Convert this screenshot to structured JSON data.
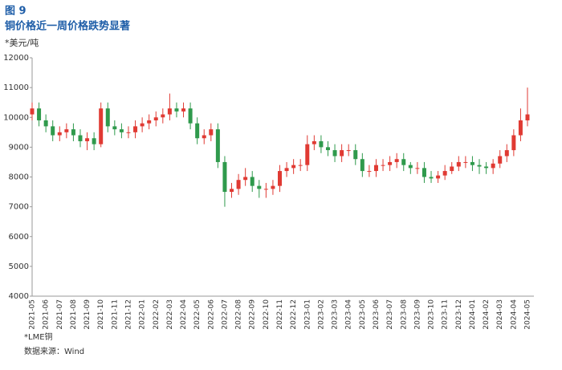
{
  "chart_data": {
    "type": "candlestick",
    "figure_label": "图 9",
    "title": "铜价格近一周价格跌势显著",
    "ylabel": "*美元/吨",
    "note": "*LME铜",
    "source": "数据来源：Wind",
    "up_color": "#e03a33",
    "down_color": "#2f9a4c",
    "categories": [
      "2021-05",
      null,
      "2021-06",
      null,
      "2021-07",
      null,
      "2021-08",
      null,
      "2021-09",
      null,
      "2021-10",
      null,
      "2021-11",
      null,
      "2021-12",
      null,
      "2022-01",
      null,
      "2022-02",
      null,
      "2022-03",
      null,
      "2022-04",
      null,
      "2022-05",
      null,
      "2022-06",
      null,
      "2022-07",
      null,
      "2022-08",
      null,
      "2022-09",
      null,
      "2022-10",
      null,
      "2022-11",
      null,
      "2022-12",
      null,
      "2023-01",
      null,
      "2023-02",
      null,
      "2023-03",
      null,
      "2023-04",
      null,
      "2023-05",
      null,
      "2023-06",
      null,
      "2023-07",
      null,
      "2023-08",
      null,
      "2023-09",
      null,
      "2023-10",
      null,
      "2023-11",
      null,
      "2023-12",
      null,
      "2024-01",
      null,
      "2024-02",
      null,
      "2024-03",
      null,
      "2024-04",
      null,
      "2024-05"
    ],
    "open": [
      10100,
      10300,
      9900,
      9700,
      9400,
      9500,
      9600,
      9400,
      9200,
      9300,
      9100,
      10300,
      9700,
      9600,
      9500,
      9500,
      9700,
      9800,
      9900,
      10000,
      10100,
      10300,
      10200,
      10300,
      9800,
      9300,
      9400,
      9600,
      8500,
      7500,
      7600,
      7900,
      8000,
      7700,
      7600,
      7600,
      7700,
      8200,
      8300,
      8400,
      8400,
      9100,
      9200,
      9000,
      8900,
      8700,
      8900,
      8900,
      8600,
      8200,
      8200,
      8400,
      8400,
      8500,
      8600,
      8400,
      8300,
      8300,
      8000,
      7950,
      8050,
      8200,
      8350,
      8500,
      8500,
      8400,
      8350,
      8300,
      8450,
      8700,
      8900,
      9400,
      9900
    ],
    "high": [
      10500,
      10500,
      10100,
      9900,
      9700,
      9800,
      9800,
      9600,
      9500,
      9500,
      10500,
      10500,
      9900,
      9800,
      9700,
      9900,
      10000,
      10100,
      10200,
      10300,
      10800,
      10500,
      10500,
      10500,
      10000,
      9600,
      9800,
      9800,
      8700,
      7800,
      8100,
      8300,
      8200,
      7900,
      7800,
      7900,
      8400,
      8500,
      8600,
      8600,
      9400,
      9400,
      9400,
      9200,
      9100,
      9100,
      9100,
      9100,
      8800,
      8400,
      8600,
      8600,
      8700,
      8800,
      8800,
      8500,
      8500,
      8500,
      8200,
      8200,
      8400,
      8500,
      8700,
      8700,
      8700,
      8600,
      8500,
      8600,
      8900,
      9100,
      9600,
      10300,
      11000
    ],
    "low": [
      9900,
      9700,
      9500,
      9200,
      9200,
      9300,
      9200,
      9000,
      8900,
      8900,
      9000,
      9500,
      9400,
      9300,
      9300,
      9300,
      9500,
      9600,
      9700,
      9800,
      9900,
      10000,
      10000,
      9600,
      9100,
      9100,
      9200,
      8300,
      7000,
      7300,
      7400,
      7700,
      7500,
      7300,
      7300,
      7400,
      7500,
      8000,
      8100,
      8200,
      8200,
      8900,
      8800,
      8700,
      8500,
      8500,
      8700,
      8400,
      8000,
      8000,
      8000,
      8200,
      8200,
      8300,
      8200,
      8100,
      8100,
      7800,
      7800,
      7800,
      7900,
      8100,
      8200,
      8300,
      8200,
      8100,
      8100,
      8100,
      8300,
      8500,
      8700,
      9200,
      9700
    ],
    "close": [
      10300,
      9900,
      9700,
      9400,
      9500,
      9600,
      9400,
      9200,
      9300,
      9100,
      10300,
      9700,
      9600,
      9500,
      9500,
      9700,
      9800,
      9900,
      10000,
      10100,
      10300,
      10200,
      10300,
      9800,
      9300,
      9400,
      9600,
      8500,
      7500,
      7600,
      7900,
      8000,
      7700,
      7600,
      7600,
      7700,
      8200,
      8300,
      8400,
      8400,
      9100,
      9200,
      9000,
      8900,
      8700,
      8900,
      8900,
      8600,
      8200,
      8200,
      8400,
      8400,
      8500,
      8600,
      8400,
      8300,
      8300,
      8000,
      7950,
      8050,
      8200,
      8350,
      8500,
      8500,
      8400,
      8350,
      8300,
      8450,
      8700,
      8900,
      9400,
      9900,
      10100
    ],
    "ylim": [
      4000,
      12000
    ],
    "yticks": [
      4000,
      5000,
      6000,
      7000,
      8000,
      9000,
      10000,
      11000,
      12000
    ]
  }
}
